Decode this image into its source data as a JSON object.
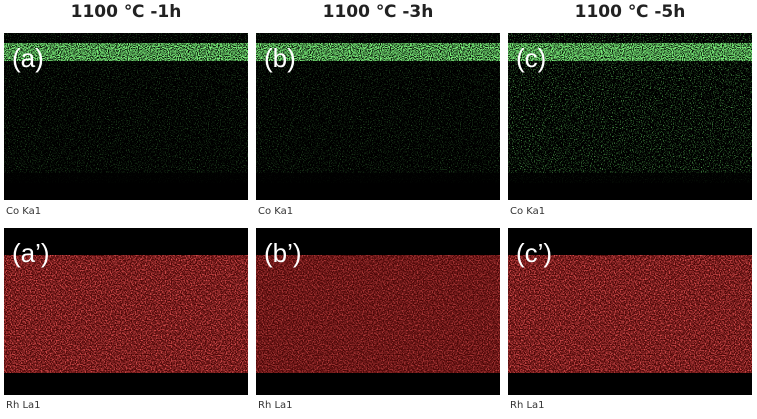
{
  "columns": [
    {
      "title": "1100 ℃ -1h",
      "panels": [
        {
          "label": "(a)",
          "caption": "Co Ka1"
        },
        {
          "label": "(a’)",
          "caption": "Rh La1"
        }
      ]
    },
    {
      "title": "1100 ℃ -3h",
      "panels": [
        {
          "label": "(b)",
          "caption": "Co Ka1"
        },
        {
          "label": "(b’)",
          "caption": "Rh La1"
        }
      ]
    },
    {
      "title": "1100 ℃ -5h",
      "panels": [
        {
          "label": "(c)",
          "caption": "Co Ka1"
        },
        {
          "label": "(c’)",
          "caption": "Rh La1"
        }
      ]
    }
  ]
}
